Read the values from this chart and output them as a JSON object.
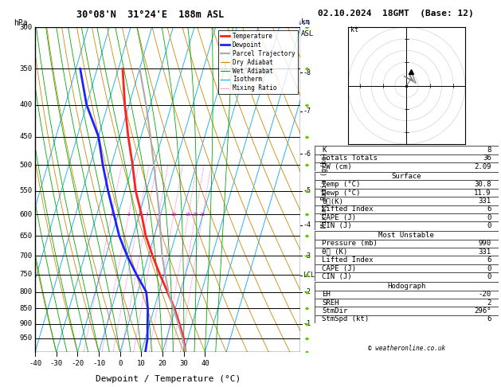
{
  "title_left": "30°08'N  31°24'E  188m ASL",
  "title_right": "02.10.2024  18GMT  (Base: 12)",
  "xlabel": "Dewpoint / Temperature (°C)",
  "ylabel_left": "hPa",
  "pressure_levels": [
    300,
    350,
    400,
    450,
    500,
    550,
    600,
    650,
    700,
    750,
    800,
    850,
    900,
    950
  ],
  "pressure_min": 300,
  "pressure_max": 1000,
  "temp_min": -40,
  "temp_max": 40,
  "skew_factor": 45,
  "bg_color": "#ffffff",
  "temp_profile_T": [
    30.8,
    28.0,
    24.0,
    19.5,
    14.0,
    8.0,
    2.0,
    -4.0,
    -9.0,
    -15.0,
    -20.0,
    -26.0,
    -32.0,
    -38.0
  ],
  "temp_profile_P": [
    1000,
    950,
    900,
    850,
    800,
    750,
    700,
    650,
    600,
    550,
    500,
    450,
    400,
    350
  ],
  "dewp_profile_T": [
    11.9,
    11.0,
    9.0,
    7.0,
    4.0,
    -3.0,
    -10.0,
    -16.5,
    -22.0,
    -28.0,
    -34.0,
    -40.0,
    -50.0,
    -58.0
  ],
  "dewp_profile_P": [
    1000,
    950,
    900,
    850,
    800,
    750,
    700,
    650,
    600,
    550,
    500,
    450,
    400,
    350
  ],
  "parcel_T": [
    30.8,
    27.5,
    23.5,
    19.0,
    14.5,
    10.5,
    6.5,
    3.0,
    -0.5,
    -5.0,
    -10.0,
    -15.5,
    -22.0,
    -30.0
  ],
  "parcel_P": [
    1000,
    950,
    900,
    850,
    800,
    750,
    700,
    650,
    600,
    550,
    500,
    450,
    400,
    350
  ],
  "km_ticks": [
    1,
    2,
    3,
    4,
    5,
    6,
    7,
    8
  ],
  "km_pressures": [
    900,
    800,
    700,
    625,
    550,
    480,
    410,
    355
  ],
  "mixing_ratios": [
    1,
    2,
    3,
    4,
    6,
    10,
    16,
    20,
    25
  ],
  "lcl_pressure": 752,
  "lcl_label": "LCL",
  "color_temp": "#ff2020",
  "color_dewp": "#2020ff",
  "color_parcel": "#aaaaaa",
  "color_dry_adiabat": "#cc8800",
  "color_wet_adiabat": "#00aa00",
  "color_isotherm": "#00aaee",
  "color_mixing": "#ff00ff",
  "info_K": 8,
  "info_TT": 36,
  "info_PW": 2.09,
  "surf_temp": 30.8,
  "surf_dewp": 11.9,
  "surf_theta_e": 331,
  "surf_li": 6,
  "surf_cape": 0,
  "surf_cin": 0,
  "mu_pressure": 990,
  "mu_theta_e": 331,
  "mu_li": 6,
  "mu_cape": 0,
  "mu_cin": 0,
  "hodo_EH": -20,
  "hodo_SREH": 2,
  "hodo_StmDir": 296,
  "hodo_StmSpd": 6
}
